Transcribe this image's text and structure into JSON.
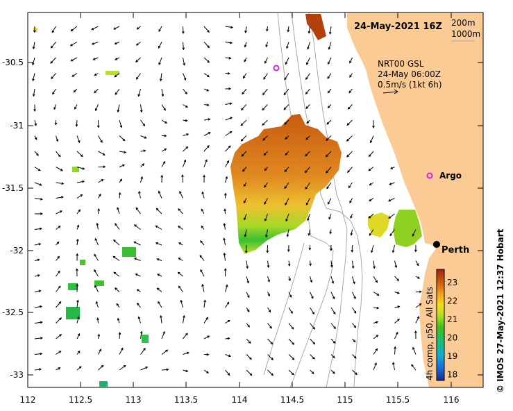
{
  "map": {
    "title": "24-May-2021 16Z",
    "depth_legend": [
      "200m",
      "1000m"
    ],
    "current_info": [
      "NRT00 GSL",
      "24-May 06:00Z",
      "0.5m/s (1kt 6h)"
    ],
    "colorbar_label": "4h comp, p50, All Sats",
    "colorbar_ticks": [
      "23",
      "22",
      "21",
      "20",
      "19",
      "18"
    ],
    "credit": "© IMOS 27-May-2021 12:37 Hobart",
    "city": "Perth",
    "argo_label": "Argo",
    "x_ticks": [
      "112",
      "112.5",
      "113",
      "113.5",
      "114",
      "114.5",
      "115",
      "115.5",
      "116"
    ],
    "y_ticks": [
      "-30.5",
      "-31",
      "-31.5",
      "-32",
      "-32.5",
      "-33"
    ],
    "colors": {
      "land": "#fbcb95",
      "argo": "#e020e0",
      "isobath": "#a8a8a8"
    }
  }
}
